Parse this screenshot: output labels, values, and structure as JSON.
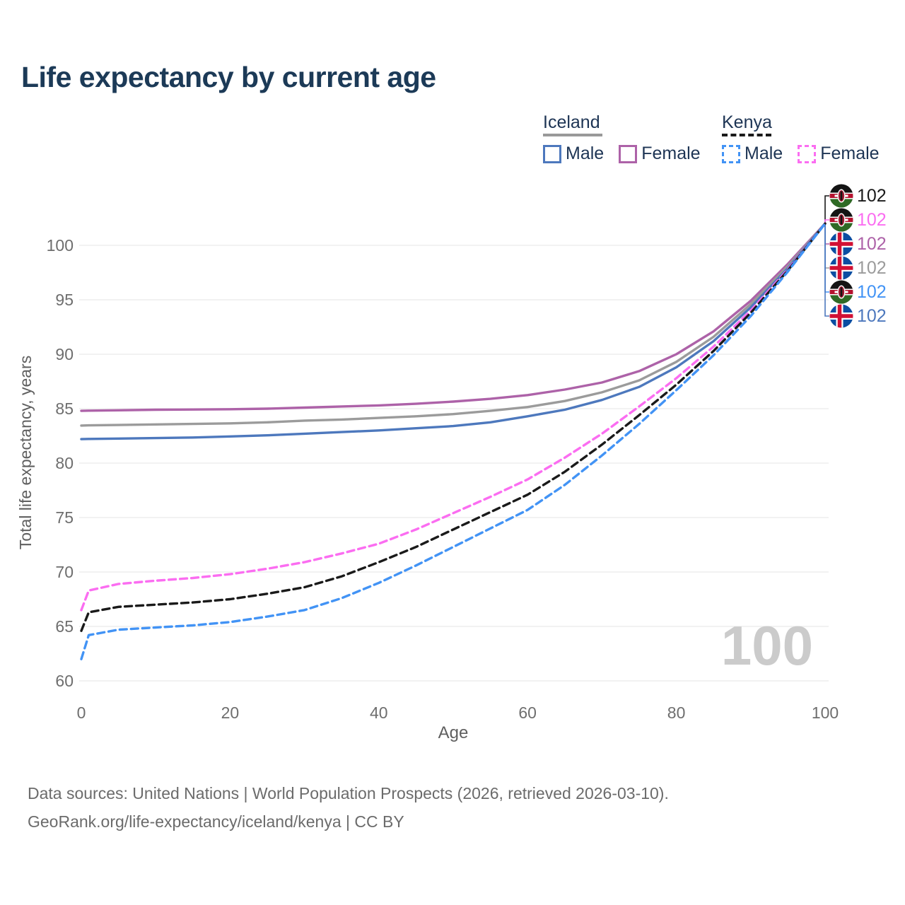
{
  "title": "Life expectancy by current age",
  "watermark": {
    "text": "100"
  },
  "legend": {
    "groups": [
      {
        "label": "Iceland",
        "line_style": "solid",
        "line_color": "#999999",
        "items": [
          {
            "label": "Male",
            "color": "#4d78bd"
          },
          {
            "label": "Female",
            "color": "#ad62a8"
          }
        ]
      },
      {
        "label": "Kenya",
        "line_style": "dashed",
        "line_color": "#1a1a1a",
        "items": [
          {
            "label": "Male",
            "color": "#4293f5"
          },
          {
            "label": "Female",
            "color": "#fb6df1"
          }
        ]
      }
    ]
  },
  "chart_data": {
    "type": "line",
    "title": "Life expectancy by current age",
    "xlabel": "Age",
    "ylabel": "Total life expectancy, years",
    "xlim": [
      0,
      100
    ],
    "ylim": [
      60,
      103
    ],
    "xticks": [
      0,
      20,
      40,
      60,
      80,
      100
    ],
    "yticks": [
      60,
      65,
      70,
      75,
      80,
      85,
      90,
      95,
      100
    ],
    "grid": "horizontal",
    "x": [
      0,
      1,
      5,
      10,
      15,
      20,
      25,
      30,
      35,
      40,
      45,
      50,
      55,
      60,
      65,
      70,
      75,
      80,
      85,
      90,
      95,
      100
    ],
    "series": [
      {
        "id": "iceland-female",
        "country": "Iceland",
        "sex": "Female",
        "color": "#ad62a8",
        "dash": false,
        "values": [
          84.8,
          84.82,
          84.85,
          84.9,
          84.92,
          84.95,
          85.0,
          85.1,
          85.2,
          85.3,
          85.45,
          85.65,
          85.9,
          86.25,
          86.75,
          87.4,
          88.45,
          90.0,
          92.1,
          94.9,
          98.3,
          102
        ]
      },
      {
        "id": "iceland-average",
        "country": "Iceland",
        "sex": "Average",
        "color": "#9b9b9b",
        "dash": false,
        "values": [
          83.45,
          83.47,
          83.5,
          83.55,
          83.6,
          83.65,
          83.75,
          83.9,
          84.0,
          84.15,
          84.3,
          84.5,
          84.8,
          85.15,
          85.7,
          86.5,
          87.6,
          89.3,
          91.6,
          94.6,
          98.1,
          102
        ]
      },
      {
        "id": "iceland-male",
        "country": "Iceland",
        "sex": "Male",
        "color": "#4d78bd",
        "dash": false,
        "values": [
          82.2,
          82.22,
          82.25,
          82.3,
          82.35,
          82.45,
          82.55,
          82.7,
          82.85,
          83.0,
          83.2,
          83.4,
          83.75,
          84.3,
          84.9,
          85.8,
          87.0,
          88.8,
          91.2,
          94.3,
          97.9,
          102
        ]
      },
      {
        "id": "kenya-female",
        "country": "Kenya",
        "sex": "Female",
        "color": "#fb6df1",
        "dash": true,
        "values": [
          66.5,
          68.3,
          68.9,
          69.2,
          69.45,
          69.8,
          70.3,
          70.9,
          71.7,
          72.6,
          73.9,
          75.4,
          76.9,
          78.5,
          80.5,
          82.7,
          85.2,
          87.8,
          90.7,
          94.0,
          97.8,
          102
        ]
      },
      {
        "id": "kenya-average",
        "country": "Kenya",
        "sex": "Average",
        "color": "#1a1a1a",
        "dash": true,
        "values": [
          64.6,
          66.3,
          66.8,
          67.0,
          67.2,
          67.5,
          68.0,
          68.6,
          69.6,
          70.9,
          72.3,
          73.9,
          75.5,
          77.1,
          79.2,
          81.7,
          84.4,
          87.2,
          90.3,
          93.8,
          97.7,
          102
        ]
      },
      {
        "id": "kenya-male",
        "country": "Kenya",
        "sex": "Male",
        "color": "#4293f5",
        "dash": true,
        "values": [
          62.0,
          64.2,
          64.7,
          64.9,
          65.1,
          65.4,
          65.9,
          66.5,
          67.6,
          69.0,
          70.6,
          72.3,
          74.0,
          75.7,
          78.0,
          80.7,
          83.6,
          86.7,
          89.9,
          93.5,
          97.6,
          102
        ]
      }
    ],
    "end_labels": [
      {
        "series": "kenya-average",
        "flag": "kenya",
        "value": "102",
        "color": "#1a1a1a"
      },
      {
        "series": "kenya-female",
        "flag": "kenya",
        "value": "102",
        "color": "#fb6df1"
      },
      {
        "series": "iceland-female",
        "flag": "iceland",
        "value": "102",
        "color": "#ad62a8"
      },
      {
        "series": "iceland-average",
        "flag": "iceland",
        "value": "102",
        "color": "#9b9b9b"
      },
      {
        "series": "kenya-male",
        "flag": "kenya",
        "value": "102",
        "color": "#4293f5"
      },
      {
        "series": "iceland-male",
        "flag": "iceland",
        "value": "102",
        "color": "#4d78bd"
      }
    ],
    "flag_colors": {
      "iceland": {
        "blue": "#0b4ea2",
        "red": "#d21034",
        "white": "#ffffff"
      },
      "kenya": {
        "black": "#141414",
        "red": "#b5122e",
        "green": "#2f6a25",
        "white": "#ffffff",
        "shield": "#9e1b32"
      }
    },
    "style": {
      "grid_color": "#eaeaea",
      "tick_color": "#6e6e6e",
      "axis_title_color": "#5f5f5f",
      "title_color": "#1c3a57"
    }
  },
  "footer": {
    "line1": "Data sources: United Nations | World Population Prospects (2026, retrieved 2026-03-10).",
    "line2": "GeoRank.org/life-expectancy/iceland/kenya | CC BY"
  }
}
